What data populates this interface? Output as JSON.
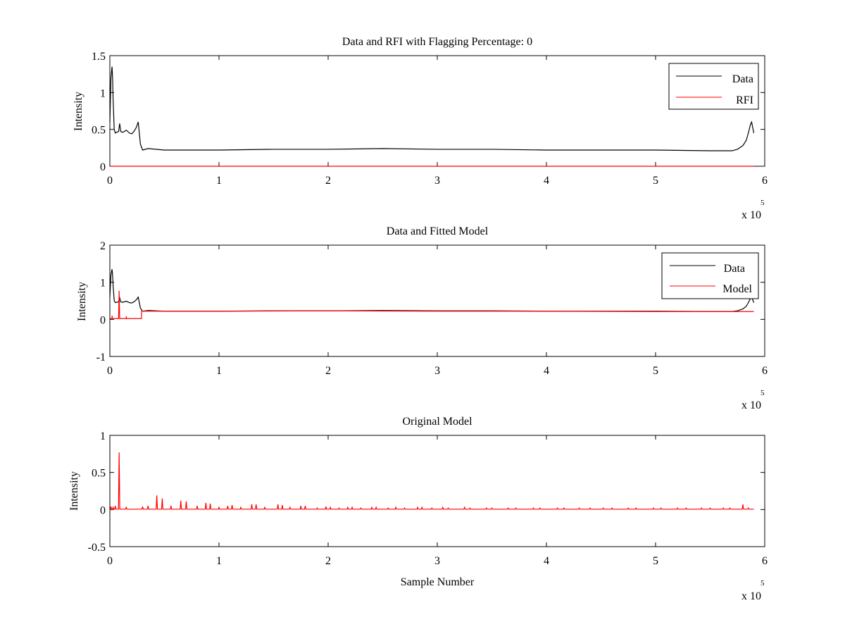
{
  "colors": {
    "data": "#000000",
    "rfi": "#ff0000",
    "model": "#ff0000",
    "original_model": "#ff0000",
    "axes": "#000000",
    "background": "#ffffff"
  },
  "chart_data": [
    {
      "type": "line",
      "title": "Data and RFI with Flagging Percentage: 0",
      "xlabel": "",
      "ylabel": "Intensity",
      "xlim": [
        0,
        6
      ],
      "ylim": [
        0,
        1.5
      ],
      "x_multiplier": "x 10",
      "x_multiplier_exponent": "5",
      "xticks": [
        0,
        1,
        2,
        3,
        4,
        5,
        6
      ],
      "yticks": [
        0,
        0.5,
        1,
        1.5
      ],
      "xtick_labels": [
        "0",
        "1",
        "2",
        "3",
        "4",
        "5",
        "6"
      ],
      "ytick_labels": [
        "0",
        "0.5",
        "1",
        "1.5"
      ],
      "legend": {
        "position": "top-right",
        "entries": [
          "Data",
          "RFI"
        ]
      },
      "series": [
        {
          "name": "Data",
          "color": "#000000",
          "x": [
            0,
            0.01,
            0.02,
            0.025,
            0.03,
            0.04,
            0.05,
            0.06,
            0.08,
            0.09,
            0.1,
            0.12,
            0.15,
            0.18,
            0.2,
            0.22,
            0.24,
            0.26,
            0.27,
            0.28,
            0.3,
            0.35,
            0.5,
            1.0,
            1.5,
            2.0,
            2.5,
            3.0,
            3.5,
            4.0,
            4.5,
            5.0,
            5.5,
            5.7,
            5.75,
            5.8,
            5.83,
            5.85,
            5.87,
            5.88,
            5.9
          ],
          "y": [
            0.6,
            1.2,
            1.35,
            1.2,
            0.9,
            0.5,
            0.45,
            0.46,
            0.47,
            0.58,
            0.47,
            0.46,
            0.49,
            0.45,
            0.44,
            0.47,
            0.52,
            0.6,
            0.45,
            0.3,
            0.22,
            0.24,
            0.22,
            0.22,
            0.23,
            0.23,
            0.24,
            0.23,
            0.23,
            0.22,
            0.22,
            0.22,
            0.21,
            0.21,
            0.23,
            0.28,
            0.35,
            0.45,
            0.57,
            0.6,
            0.45
          ]
        },
        {
          "name": "RFI",
          "color": "#ff0000",
          "x": [
            0,
            5.9
          ],
          "y": [
            0,
            0
          ]
        }
      ]
    },
    {
      "type": "line",
      "title": "Data and Fitted Model",
      "xlabel": "",
      "ylabel": "Intensity",
      "xlim": [
        0,
        6
      ],
      "ylim": [
        -1,
        2
      ],
      "x_multiplier": "x 10",
      "x_multiplier_exponent": "5",
      "xticks": [
        0,
        1,
        2,
        3,
        4,
        5,
        6
      ],
      "yticks": [
        -1,
        0,
        1,
        2
      ],
      "xtick_labels": [
        "0",
        "1",
        "2",
        "3",
        "4",
        "5",
        "6"
      ],
      "ytick_labels": [
        "-1",
        "0",
        "1",
        "2"
      ],
      "legend": {
        "position": "top-right",
        "entries": [
          "Data",
          "Model"
        ]
      },
      "series": [
        {
          "name": "Data",
          "color": "#000000",
          "x": [
            0,
            0.01,
            0.02,
            0.025,
            0.03,
            0.04,
            0.05,
            0.06,
            0.08,
            0.09,
            0.1,
            0.12,
            0.15,
            0.18,
            0.2,
            0.22,
            0.24,
            0.26,
            0.27,
            0.28,
            0.3,
            0.35,
            0.5,
            1.0,
            1.5,
            2.0,
            2.5,
            3.0,
            3.5,
            4.0,
            4.5,
            5.0,
            5.5,
            5.7,
            5.75,
            5.8,
            5.83,
            5.85,
            5.87,
            5.88,
            5.9
          ],
          "y": [
            0.6,
            1.2,
            1.35,
            1.2,
            0.9,
            0.5,
            0.45,
            0.46,
            0.47,
            0.58,
            0.47,
            0.46,
            0.49,
            0.45,
            0.44,
            0.47,
            0.52,
            0.6,
            0.45,
            0.3,
            0.22,
            0.24,
            0.22,
            0.22,
            0.23,
            0.23,
            0.24,
            0.23,
            0.23,
            0.22,
            0.22,
            0.22,
            0.21,
            0.21,
            0.23,
            0.28,
            0.35,
            0.45,
            0.57,
            0.6,
            0.45
          ]
        },
        {
          "name": "Model",
          "color": "#ff0000",
          "x": [
            0,
            0.02,
            0.021,
            0.022,
            0.05,
            0.08,
            0.085,
            0.09,
            0.15,
            0.151,
            0.152,
            0.29,
            0.291,
            1.0,
            2.0,
            3.0,
            4.0,
            5.0,
            5.9
          ],
          "y": [
            0.02,
            0.02,
            0.1,
            0.02,
            0.02,
            0.02,
            0.77,
            0.02,
            0.02,
            0.08,
            0.02,
            0.02,
            0.22,
            0.22,
            0.23,
            0.22,
            0.22,
            0.21,
            0.21
          ]
        }
      ]
    },
    {
      "type": "line",
      "title": "Original Model",
      "xlabel": "Sample Number",
      "ylabel": "Intensity",
      "xlim": [
        0,
        6
      ],
      "ylim": [
        -0.5,
        1
      ],
      "x_multiplier": "x 10",
      "x_multiplier_exponent": "5",
      "xticks": [
        0,
        1,
        2,
        3,
        4,
        5,
        6
      ],
      "yticks": [
        -0.5,
        0,
        0.5,
        1
      ],
      "xtick_labels": [
        "0",
        "1",
        "2",
        "3",
        "4",
        "5",
        "6"
      ],
      "ytick_labels": [
        "-0.5",
        "0",
        "0.5",
        "1"
      ],
      "series": [
        {
          "name": "Original Model",
          "color": "#ff0000",
          "baseline": 0.005,
          "peaks": [
            [
              0.01,
              0.04
            ],
            [
              0.03,
              0.03
            ],
            [
              0.05,
              0.05
            ],
            [
              0.085,
              0.77
            ],
            [
              0.15,
              0.03
            ],
            [
              0.3,
              0.04
            ],
            [
              0.35,
              0.05
            ],
            [
              0.43,
              0.19
            ],
            [
              0.48,
              0.15
            ],
            [
              0.56,
              0.05
            ],
            [
              0.65,
              0.12
            ],
            [
              0.7,
              0.11
            ],
            [
              0.8,
              0.05
            ],
            [
              0.88,
              0.09
            ],
            [
              0.92,
              0.08
            ],
            [
              1.0,
              0.03
            ],
            [
              1.08,
              0.05
            ],
            [
              1.12,
              0.06
            ],
            [
              1.2,
              0.03
            ],
            [
              1.3,
              0.07
            ],
            [
              1.34,
              0.07
            ],
            [
              1.42,
              0.03
            ],
            [
              1.54,
              0.07
            ],
            [
              1.58,
              0.06
            ],
            [
              1.65,
              0.03
            ],
            [
              1.75,
              0.05
            ],
            [
              1.79,
              0.05
            ],
            [
              1.9,
              0.02
            ],
            [
              1.98,
              0.04
            ],
            [
              2.02,
              0.03
            ],
            [
              2.1,
              0.02
            ],
            [
              2.18,
              0.03
            ],
            [
              2.22,
              0.03
            ],
            [
              2.3,
              0.02
            ],
            [
              2.4,
              0.03
            ],
            [
              2.44,
              0.03
            ],
            [
              2.55,
              0.02
            ],
            [
              2.62,
              0.03
            ],
            [
              2.7,
              0.02
            ],
            [
              2.82,
              0.03
            ],
            [
              2.86,
              0.03
            ],
            [
              2.95,
              0.02
            ],
            [
              3.05,
              0.03
            ],
            [
              3.1,
              0.02
            ],
            [
              3.25,
              0.03
            ],
            [
              3.3,
              0.02
            ],
            [
              3.45,
              0.02
            ],
            [
              3.5,
              0.02
            ],
            [
              3.65,
              0.02
            ],
            [
              3.72,
              0.02
            ],
            [
              3.88,
              0.02
            ],
            [
              3.94,
              0.02
            ],
            [
              4.1,
              0.02
            ],
            [
              4.16,
              0.02
            ],
            [
              4.3,
              0.02
            ],
            [
              4.4,
              0.02
            ],
            [
              4.52,
              0.02
            ],
            [
              4.6,
              0.02
            ],
            [
              4.75,
              0.02
            ],
            [
              4.82,
              0.02
            ],
            [
              4.98,
              0.02
            ],
            [
              5.05,
              0.02
            ],
            [
              5.2,
              0.02
            ],
            [
              5.28,
              0.02
            ],
            [
              5.42,
              0.02
            ],
            [
              5.5,
              0.02
            ],
            [
              5.62,
              0.02
            ],
            [
              5.68,
              0.02
            ],
            [
              5.8,
              0.07
            ],
            [
              5.85,
              0.02
            ]
          ],
          "x_end": 5.9
        }
      ]
    }
  ]
}
